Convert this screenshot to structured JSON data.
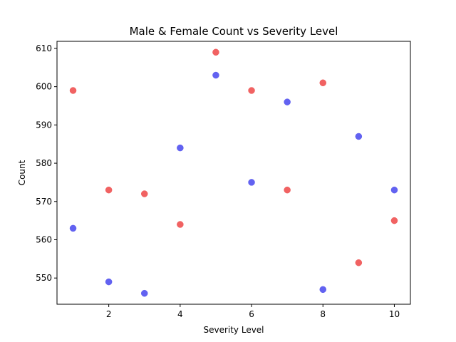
{
  "chart_data": {
    "type": "scatter",
    "title": "Male & Female Count vs Severity Level",
    "xlabel": "Severity Level",
    "ylabel": "Count",
    "xlim": [
      0.55,
      10.45
    ],
    "ylim": [
      543.15,
      611.85
    ],
    "xticks": [
      2,
      4,
      6,
      8,
      10
    ],
    "yticks": [
      550,
      560,
      570,
      580,
      590,
      600,
      610
    ],
    "grid": false,
    "series": [
      {
        "color": "#5a5af0",
        "x": [
          1,
          2,
          3,
          4,
          5,
          6,
          7,
          8,
          9,
          10
        ],
        "y": [
          563,
          549,
          546,
          584,
          603,
          575,
          596,
          547,
          587,
          573
        ]
      },
      {
        "color": "#f05a5a",
        "x": [
          1,
          2,
          3,
          4,
          5,
          6,
          7,
          8,
          9,
          10
        ],
        "y": [
          599,
          573,
          572,
          564,
          609,
          599,
          573,
          601,
          554,
          565
        ]
      }
    ]
  }
}
